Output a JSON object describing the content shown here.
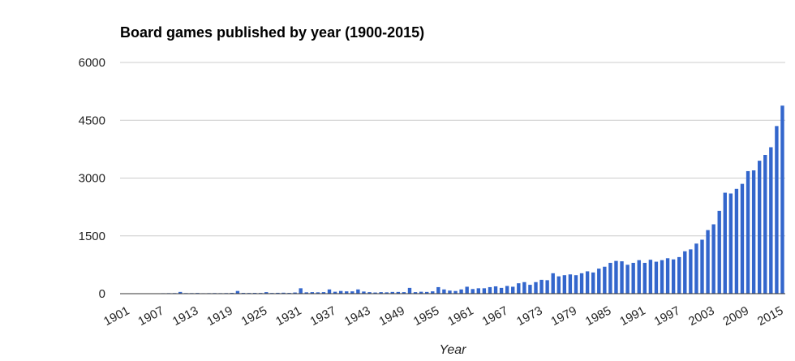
{
  "chart_data": {
    "type": "bar",
    "title": "Board games published by year (1900-2015)",
    "xlabel": "Year",
    "ylabel": "",
    "ylim": [
      0,
      6000
    ],
    "yticks": [
      "0",
      "1500",
      "3000",
      "4500",
      "6000"
    ],
    "xtick_labels": [
      "1901",
      "1907",
      "1913",
      "1919",
      "1925",
      "1931",
      "1937",
      "1943",
      "1949",
      "1955",
      "1961",
      "1967",
      "1973",
      "1979",
      "1985",
      "1991",
      "1997",
      "2003",
      "2009",
      "2015"
    ],
    "grid": true,
    "legend": "none",
    "bar_color": "#3366cc",
    "categories": [
      "1900",
      "1901",
      "1902",
      "1903",
      "1904",
      "1905",
      "1906",
      "1907",
      "1908",
      "1909",
      "1910",
      "1911",
      "1912",
      "1913",
      "1914",
      "1915",
      "1916",
      "1917",
      "1918",
      "1919",
      "1920",
      "1921",
      "1922",
      "1923",
      "1924",
      "1925",
      "1926",
      "1927",
      "1928",
      "1929",
      "1930",
      "1931",
      "1932",
      "1933",
      "1934",
      "1935",
      "1936",
      "1937",
      "1938",
      "1939",
      "1940",
      "1941",
      "1942",
      "1943",
      "1944",
      "1945",
      "1946",
      "1947",
      "1948",
      "1949",
      "1950",
      "1951",
      "1952",
      "1953",
      "1954",
      "1955",
      "1956",
      "1957",
      "1958",
      "1959",
      "1960",
      "1961",
      "1962",
      "1963",
      "1964",
      "1965",
      "1966",
      "1967",
      "1968",
      "1969",
      "1970",
      "1971",
      "1972",
      "1973",
      "1974",
      "1975",
      "1976",
      "1977",
      "1978",
      "1979",
      "1980",
      "1981",
      "1982",
      "1983",
      "1984",
      "1985",
      "1986",
      "1987",
      "1988",
      "1989",
      "1990",
      "1991",
      "1992",
      "1993",
      "1994",
      "1995",
      "1996",
      "1997",
      "1998",
      "1999",
      "2000",
      "2001",
      "2002",
      "2003",
      "2004",
      "2005",
      "2006",
      "2007",
      "2008",
      "2009",
      "2010",
      "2011",
      "2012",
      "2013",
      "2014",
      "2015"
    ],
    "values": [
      5,
      6,
      8,
      8,
      8,
      10,
      9,
      12,
      14,
      15,
      45,
      15,
      15,
      18,
      12,
      14,
      16,
      14,
      16,
      20,
      70,
      20,
      18,
      20,
      18,
      40,
      18,
      22,
      25,
      20,
      30,
      140,
      35,
      40,
      35,
      40,
      110,
      50,
      70,
      60,
      60,
      110,
      55,
      40,
      30,
      40,
      35,
      45,
      45,
      40,
      150,
      40,
      50,
      45,
      60,
      170,
      110,
      80,
      70,
      110,
      180,
      120,
      140,
      140,
      170,
      190,
      150,
      200,
      180,
      270,
      300,
      230,
      300,
      360,
      350,
      530,
      450,
      480,
      500,
      480,
      530,
      580,
      550,
      650,
      700,
      800,
      850,
      840,
      750,
      800,
      870,
      800,
      880,
      830,
      870,
      920,
      890,
      950,
      1100,
      1150,
      1300,
      1400,
      1650,
      1800,
      2150,
      2620,
      2600,
      2720,
      2850,
      3180,
      3200,
      3450,
      3600,
      3800,
      4350,
      4880
    ]
  }
}
